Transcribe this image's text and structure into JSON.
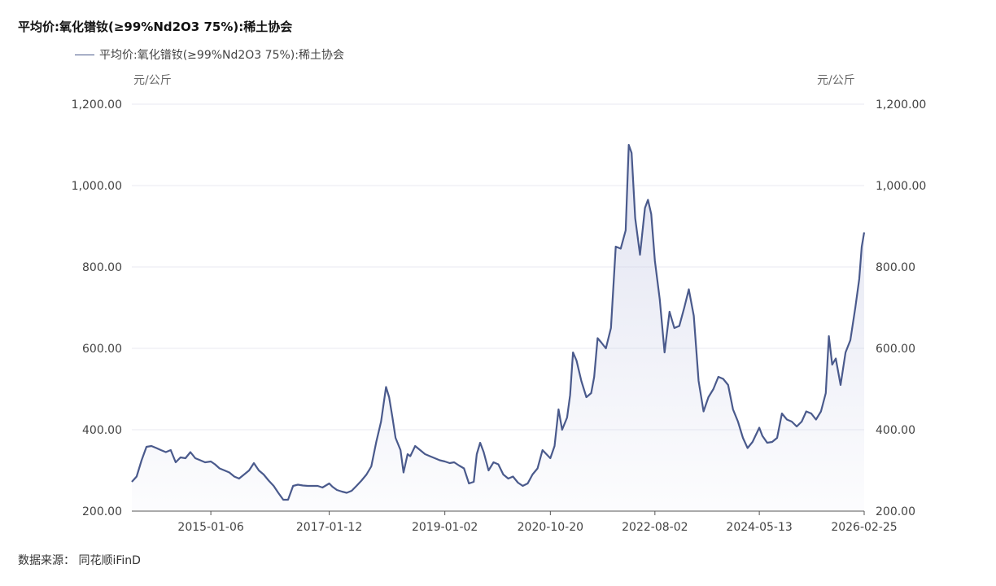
{
  "title": "平均价:氧化镨钕(≥99%Nd2O3 75%):稀土协会",
  "legend_label": "平均价:氧化镨钕(≥99%Nd2O3 75%):稀土协会",
  "unit_left": "元/公斤",
  "unit_right": "元/公斤",
  "source": "数据来源：  同花顺iFinD",
  "colors": {
    "line": "#4a5a8c",
    "grid": "#e9eaf0",
    "axis": "#555555"
  },
  "chart_data": {
    "type": "area",
    "title": "平均价:氧化镨钕(≥99%Nd2O3 75%):稀土协会",
    "ylabel": "元/公斤",
    "ylim": [
      200,
      1200
    ],
    "yticks": [
      "200.00",
      "400.00",
      "600.00",
      "800.00",
      "1,000.00",
      "1,200.00"
    ],
    "xlim": [
      "2013-09-01",
      "2026-02-25"
    ],
    "xticks": [
      "2015-01-06",
      "2017-01-12",
      "2019-01-02",
      "2020-10-20",
      "2022-08-02",
      "2024-05-13",
      "2026-02-25"
    ],
    "grid": true,
    "legend": "top-left",
    "series": [
      {
        "name": "平均价:氧化镨钕(≥99%Nd2O3 75%):稀土协会",
        "points": [
          [
            "2013-09-01",
            272
          ],
          [
            "2013-10-01",
            285
          ],
          [
            "2013-11-01",
            325
          ],
          [
            "2013-12-01",
            358
          ],
          [
            "2014-01-01",
            360
          ],
          [
            "2014-02-01",
            355
          ],
          [
            "2014-03-01",
            350
          ],
          [
            "2014-04-01",
            345
          ],
          [
            "2014-05-01",
            350
          ],
          [
            "2014-06-01",
            320
          ],
          [
            "2014-07-01",
            332
          ],
          [
            "2014-08-01",
            330
          ],
          [
            "2014-09-01",
            345
          ],
          [
            "2014-10-01",
            330
          ],
          [
            "2014-11-01",
            325
          ],
          [
            "2014-12-01",
            320
          ],
          [
            "2015-01-06",
            322
          ],
          [
            "2015-02-01",
            315
          ],
          [
            "2015-03-01",
            305
          ],
          [
            "2015-04-01",
            300
          ],
          [
            "2015-05-01",
            295
          ],
          [
            "2015-06-01",
            285
          ],
          [
            "2015-07-01",
            280
          ],
          [
            "2015-08-01",
            290
          ],
          [
            "2015-09-01",
            300
          ],
          [
            "2015-10-01",
            318
          ],
          [
            "2015-11-01",
            300
          ],
          [
            "2015-12-01",
            290
          ],
          [
            "2016-01-01",
            275
          ],
          [
            "2016-02-01",
            262
          ],
          [
            "2016-03-01",
            245
          ],
          [
            "2016-04-01",
            228
          ],
          [
            "2016-05-01",
            228
          ],
          [
            "2016-06-01",
            262
          ],
          [
            "2016-07-01",
            265
          ],
          [
            "2016-08-01",
            263
          ],
          [
            "2016-09-01",
            262
          ],
          [
            "2016-10-01",
            262
          ],
          [
            "2016-11-01",
            262
          ],
          [
            "2016-12-01",
            258
          ],
          [
            "2017-01-12",
            268
          ],
          [
            "2017-02-01",
            260
          ],
          [
            "2017-03-01",
            252
          ],
          [
            "2017-04-01",
            248
          ],
          [
            "2017-05-01",
            245
          ],
          [
            "2017-06-01",
            250
          ],
          [
            "2017-07-01",
            262
          ],
          [
            "2017-08-01",
            275
          ],
          [
            "2017-09-01",
            290
          ],
          [
            "2017-10-01",
            310
          ],
          [
            "2017-11-01",
            370
          ],
          [
            "2017-12-01",
            420
          ],
          [
            "2018-01-01",
            505
          ],
          [
            "2018-01-20",
            480
          ],
          [
            "2018-02-10",
            430
          ],
          [
            "2018-03-01",
            380
          ],
          [
            "2018-04-01",
            350
          ],
          [
            "2018-04-20",
            295
          ],
          [
            "2018-05-15",
            340
          ],
          [
            "2018-06-01",
            335
          ],
          [
            "2018-07-01",
            360
          ],
          [
            "2018-08-01",
            350
          ],
          [
            "2018-09-01",
            340
          ],
          [
            "2018-10-01",
            335
          ],
          [
            "2018-11-01",
            330
          ],
          [
            "2018-12-01",
            325
          ],
          [
            "2019-01-02",
            322
          ],
          [
            "2019-02-01",
            318
          ],
          [
            "2019-03-01",
            320
          ],
          [
            "2019-04-01",
            312
          ],
          [
            "2019-05-01",
            305
          ],
          [
            "2019-06-01",
            268
          ],
          [
            "2019-07-01",
            272
          ],
          [
            "2019-07-20",
            340
          ],
          [
            "2019-08-10",
            368
          ],
          [
            "2019-09-01",
            345
          ],
          [
            "2019-10-01",
            300
          ],
          [
            "2019-11-01",
            320
          ],
          [
            "2019-12-01",
            315
          ],
          [
            "2020-01-01",
            290
          ],
          [
            "2020-02-01",
            280
          ],
          [
            "2020-03-01",
            285
          ],
          [
            "2020-04-01",
            270
          ],
          [
            "2020-05-01",
            262
          ],
          [
            "2020-06-01",
            268
          ],
          [
            "2020-07-01",
            290
          ],
          [
            "2020-08-01",
            305
          ],
          [
            "2020-09-01",
            350
          ],
          [
            "2020-10-20",
            330
          ],
          [
            "2020-11-15",
            360
          ],
          [
            "2020-12-10",
            450
          ],
          [
            "2021-01-01",
            400
          ],
          [
            "2021-02-01",
            430
          ],
          [
            "2021-02-20",
            485
          ],
          [
            "2021-03-10",
            590
          ],
          [
            "2021-04-01",
            570
          ],
          [
            "2021-05-01",
            520
          ],
          [
            "2021-06-01",
            480
          ],
          [
            "2021-07-01",
            490
          ],
          [
            "2021-07-20",
            530
          ],
          [
            "2021-08-10",
            625
          ],
          [
            "2021-09-01",
            615
          ],
          [
            "2021-10-01",
            600
          ],
          [
            "2021-11-01",
            650
          ],
          [
            "2021-12-01",
            850
          ],
          [
            "2022-01-01",
            845
          ],
          [
            "2022-02-01",
            890
          ],
          [
            "2022-02-20",
            1100
          ],
          [
            "2022-03-10",
            1080
          ],
          [
            "2022-04-01",
            920
          ],
          [
            "2022-05-01",
            830
          ],
          [
            "2022-06-01",
            945
          ],
          [
            "2022-06-20",
            965
          ],
          [
            "2022-07-10",
            930
          ],
          [
            "2022-08-02",
            815
          ],
          [
            "2022-09-01",
            720
          ],
          [
            "2022-10-01",
            590
          ],
          [
            "2022-11-01",
            690
          ],
          [
            "2022-12-01",
            650
          ],
          [
            "2023-01-01",
            655
          ],
          [
            "2023-02-01",
            700
          ],
          [
            "2023-03-01",
            745
          ],
          [
            "2023-04-01",
            680
          ],
          [
            "2023-05-01",
            520
          ],
          [
            "2023-06-01",
            445
          ],
          [
            "2023-07-01",
            480
          ],
          [
            "2023-08-01",
            500
          ],
          [
            "2023-09-01",
            530
          ],
          [
            "2023-10-01",
            525
          ],
          [
            "2023-11-01",
            510
          ],
          [
            "2023-12-01",
            450
          ],
          [
            "2024-01-01",
            420
          ],
          [
            "2024-02-01",
            380
          ],
          [
            "2024-03-01",
            355
          ],
          [
            "2024-04-01",
            370
          ],
          [
            "2024-05-13",
            405
          ],
          [
            "2024-06-01",
            385
          ],
          [
            "2024-07-01",
            368
          ],
          [
            "2024-08-01",
            370
          ],
          [
            "2024-09-01",
            380
          ],
          [
            "2024-10-01",
            440
          ],
          [
            "2024-11-01",
            425
          ],
          [
            "2024-12-01",
            420
          ],
          [
            "2025-01-01",
            408
          ],
          [
            "2025-02-01",
            420
          ],
          [
            "2025-03-01",
            445
          ],
          [
            "2025-04-01",
            440
          ],
          [
            "2025-05-01",
            425
          ],
          [
            "2025-06-01",
            445
          ],
          [
            "2025-07-01",
            490
          ],
          [
            "2025-07-20",
            630
          ],
          [
            "2025-08-10",
            560
          ],
          [
            "2025-09-01",
            575
          ],
          [
            "2025-10-01",
            510
          ],
          [
            "2025-11-01",
            590
          ],
          [
            "2025-12-01",
            620
          ],
          [
            "2026-01-01",
            700
          ],
          [
            "2026-01-25",
            770
          ],
          [
            "2026-02-10",
            850
          ],
          [
            "2026-02-25",
            885
          ]
        ]
      }
    ]
  }
}
